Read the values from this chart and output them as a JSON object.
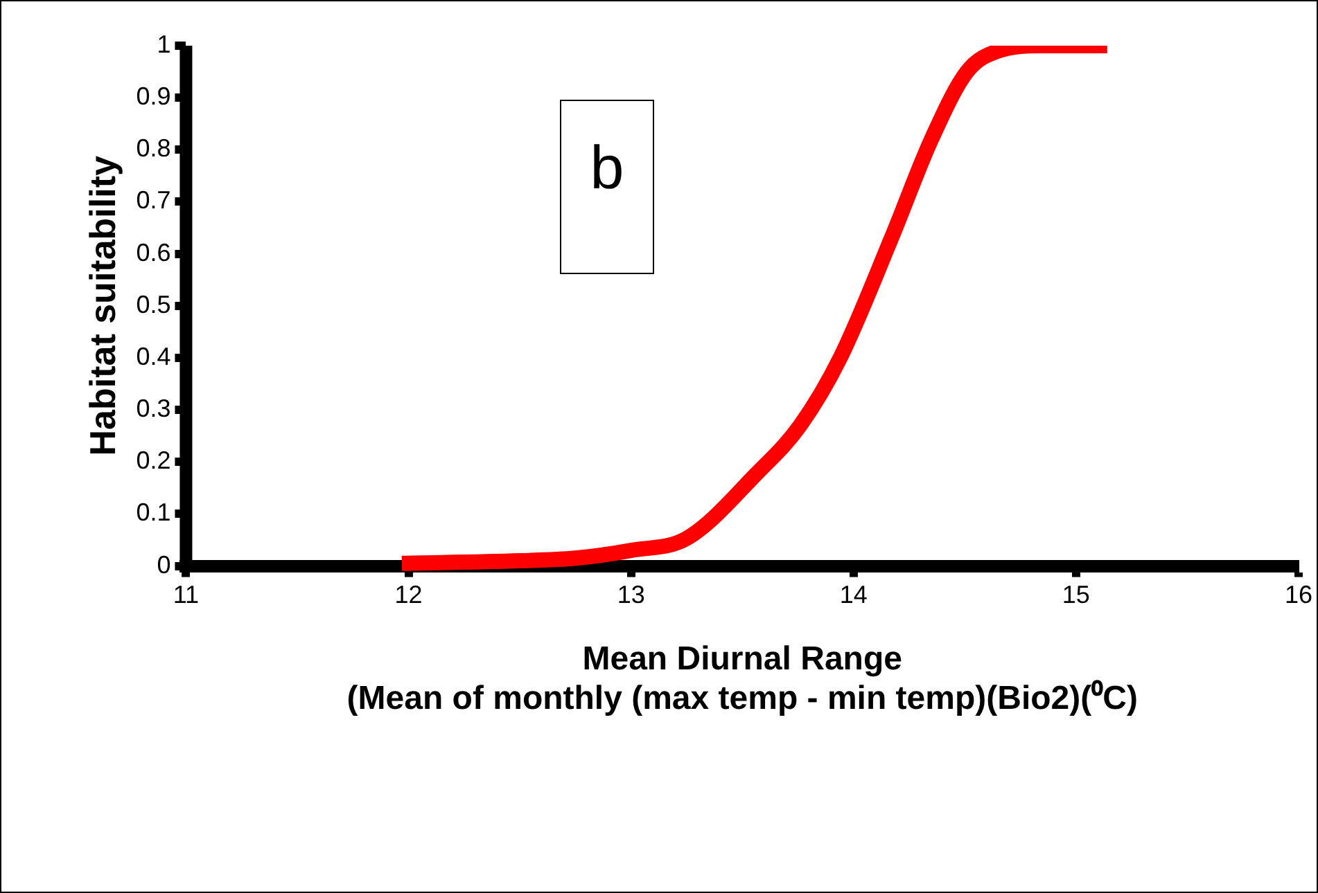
{
  "chart_data": {
    "type": "line",
    "xlabel": "Mean Diurnal Range\n(Mean of monthly (max temp - min temp)(Bio2)(⁰C)",
    "ylabel": "Habitat suitability",
    "annotations": [
      "b"
    ],
    "x": [
      11.97,
      12.5,
      12.75,
      13,
      13.25,
      13.57,
      13.76,
      13.94,
      14.17,
      14.35,
      14.51,
      14.65,
      14.85,
      15.14
    ],
    "series": [
      {
        "color": "#ff0000",
        "values": [
          0.005,
          0.01,
          0.015,
          0.03,
          0.053,
          0.18,
          0.27,
          0.4,
          0.63,
          0.82,
          0.95,
          0.99,
          1,
          1
        ]
      }
    ],
    "xlim": [
      11,
      16
    ],
    "xticks": [
      11,
      12,
      13,
      14,
      15,
      16
    ],
    "ylim": [
      0,
      1
    ],
    "yticks": [
      0,
      0.1,
      0.2,
      0.3,
      0.4,
      0.5,
      0.6,
      0.7,
      0.8,
      0.9,
      1
    ],
    "grid": false,
    "legend": false,
    "marker": "none",
    "line_style": "solid"
  }
}
